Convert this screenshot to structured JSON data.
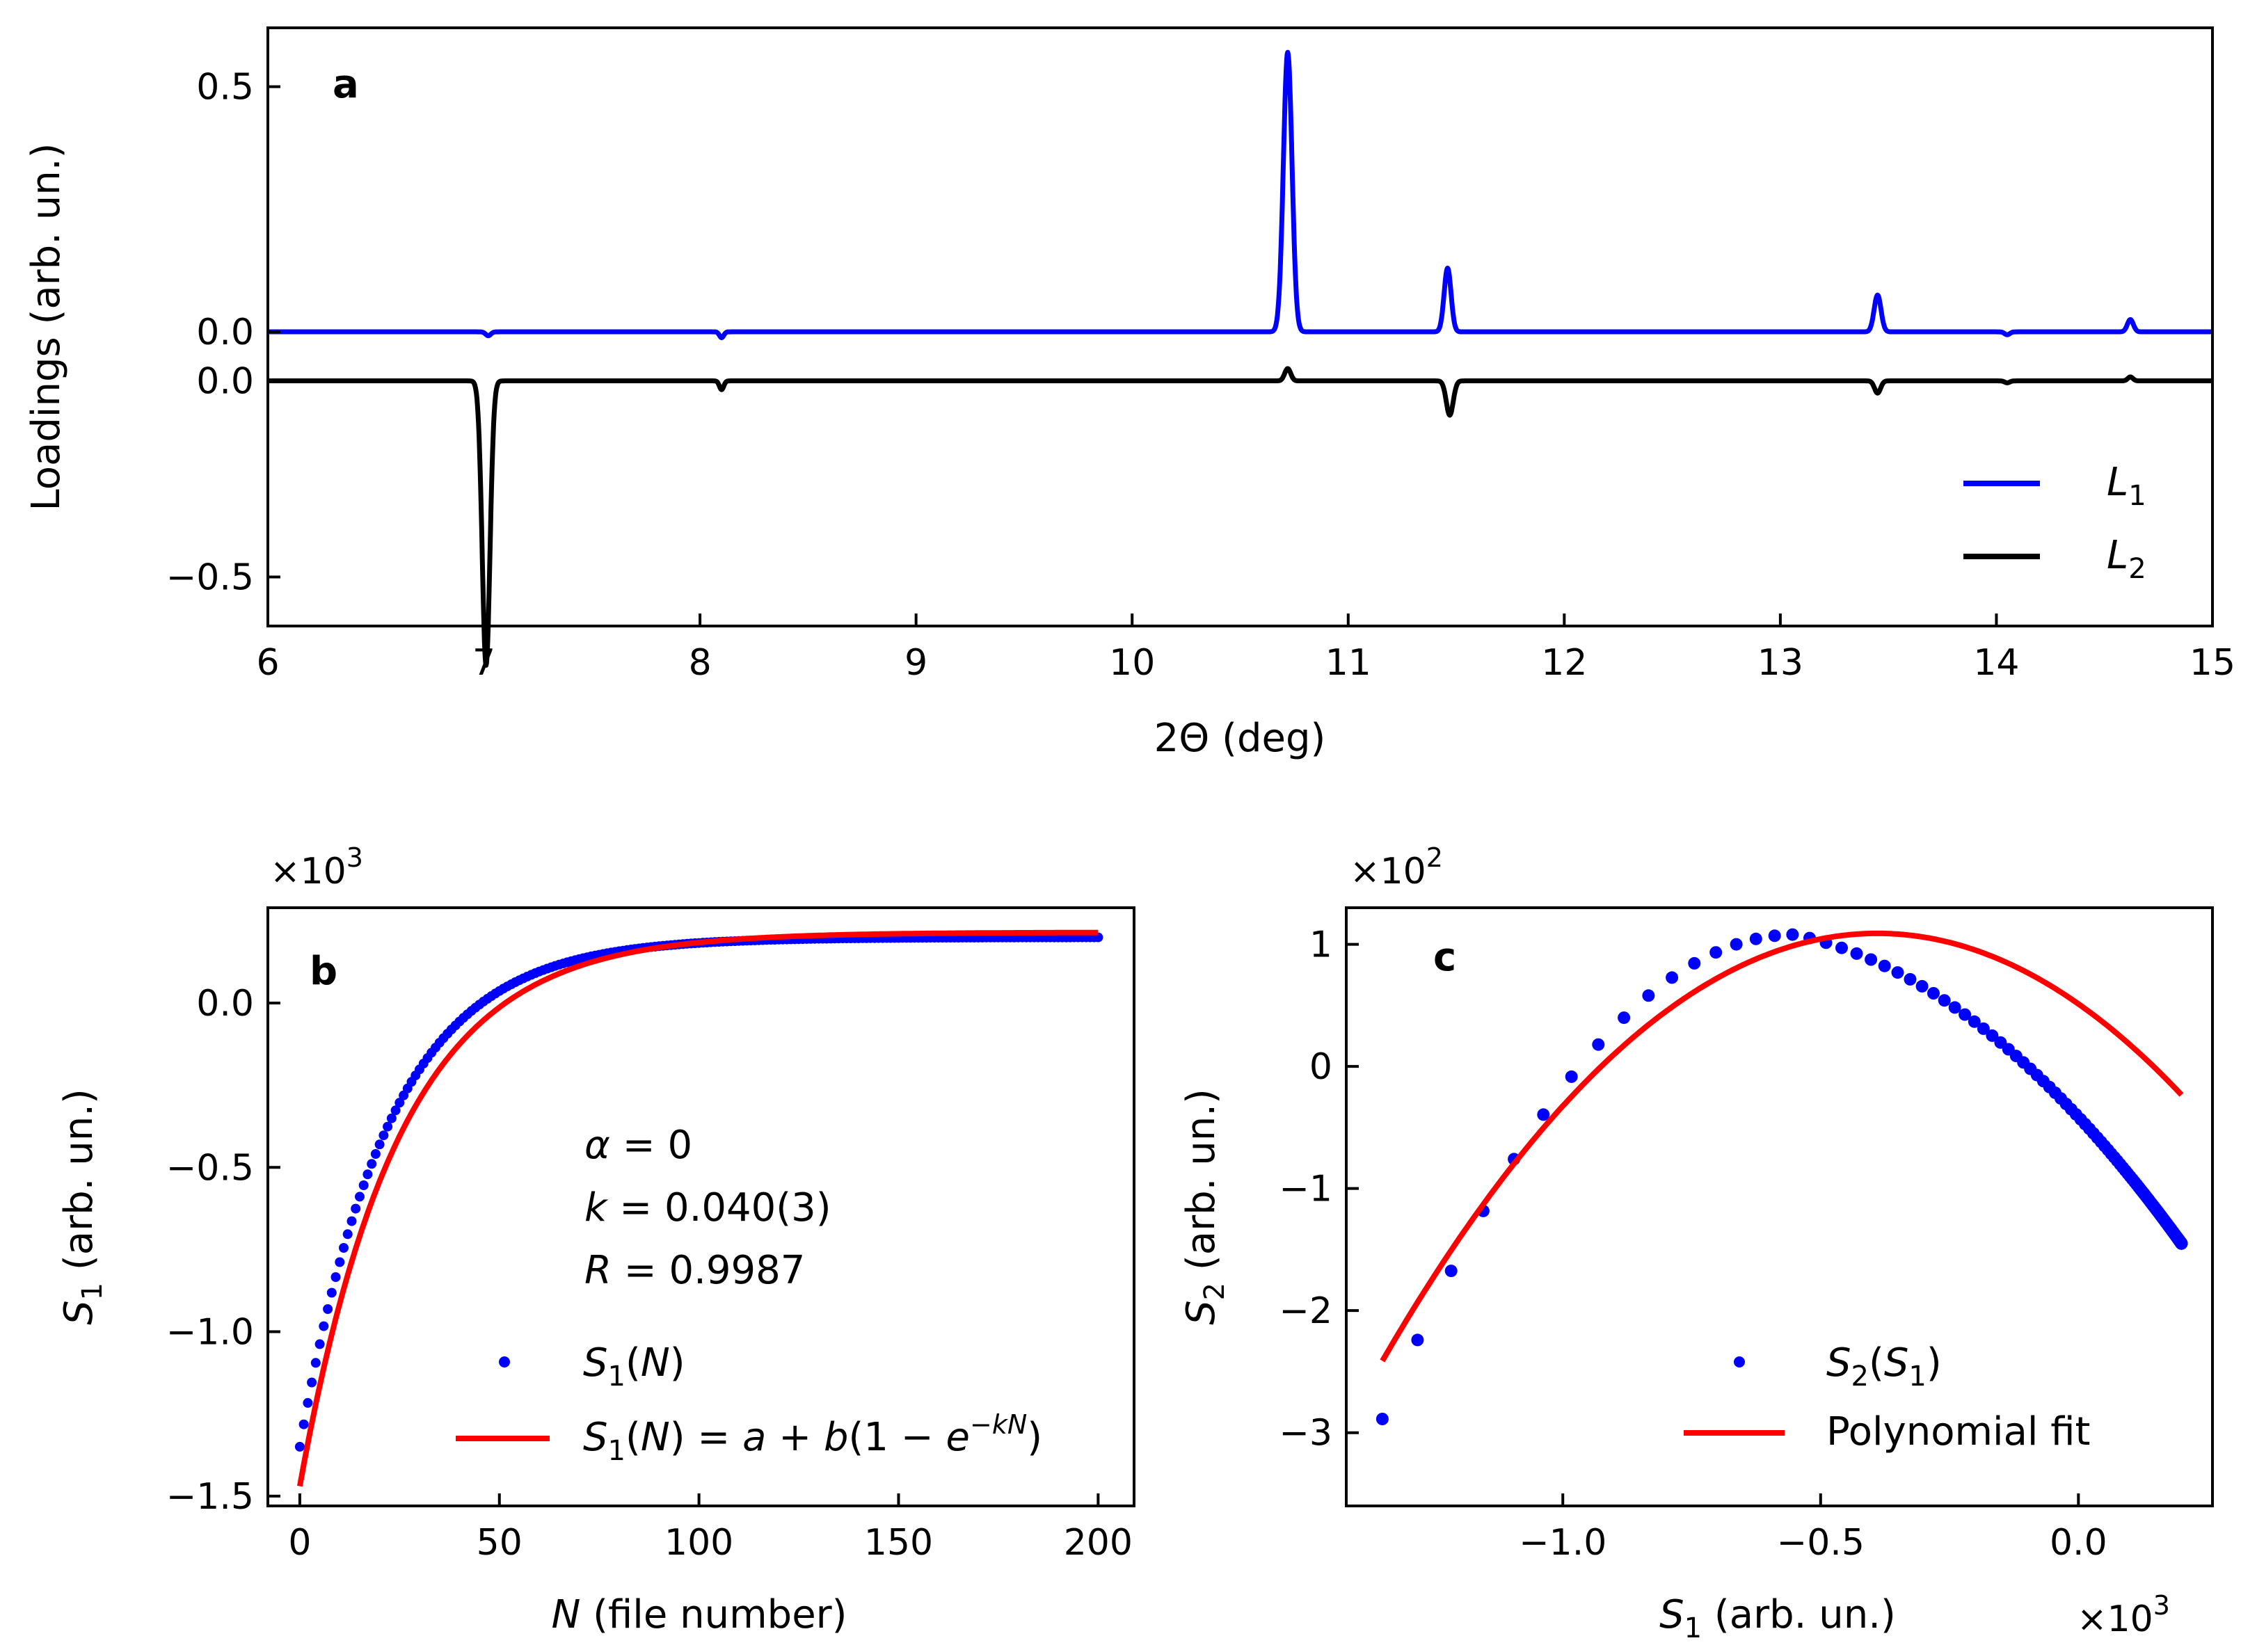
{
  "chart_data": [
    {
      "panel": "a",
      "type": "line",
      "panel_label": "a",
      "xlabel": "2Θ (deg)",
      "ylabel": "Loadings (arb. un.)",
      "xlim": [
        6,
        15
      ],
      "xticks": [
        6,
        7,
        8,
        9,
        10,
        11,
        12,
        13,
        14,
        15
      ],
      "ylim": [
        -0.6,
        0.62
      ],
      "yticks": [
        {
          "value": 0.5,
          "label": "0.5"
        },
        {
          "value": 0.0,
          "label": "0.0"
        },
        {
          "value": -0.1,
          "label": "0.0"
        },
        {
          "value": -0.5,
          "label": "−0.5"
        }
      ],
      "legend_position": "bottom-right",
      "series": [
        {
          "name": "L1",
          "legend_base": "L",
          "legend_sub": "1",
          "color": "#0000ff",
          "baseline": 0.0,
          "peaks": [
            {
              "x": 7.02,
              "amp": -0.008,
              "width": 0.012
            },
            {
              "x": 8.1,
              "amp": -0.012,
              "width": 0.01
            },
            {
              "x": 10.72,
              "amp": 0.57,
              "width": 0.02
            },
            {
              "x": 11.46,
              "amp": 0.13,
              "width": 0.016
            },
            {
              "x": 13.45,
              "amp": 0.075,
              "width": 0.016
            },
            {
              "x": 14.05,
              "amp": -0.006,
              "width": 0.012
            },
            {
              "x": 14.62,
              "amp": 0.025,
              "width": 0.014
            }
          ]
        },
        {
          "name": "L2",
          "legend_base": "L",
          "legend_sub": "2",
          "color": "#000000",
          "baseline": -0.1,
          "peaks": [
            {
              "x": 7.01,
              "amp": -0.58,
              "width": 0.018
            },
            {
              "x": 8.1,
              "amp": -0.018,
              "width": 0.01
            },
            {
              "x": 10.72,
              "amp": 0.025,
              "width": 0.014
            },
            {
              "x": 11.47,
              "amp": -0.07,
              "width": 0.016
            },
            {
              "x": 13.45,
              "amp": -0.025,
              "width": 0.014
            },
            {
              "x": 14.05,
              "amp": -0.004,
              "width": 0.012
            },
            {
              "x": 14.62,
              "amp": 0.008,
              "width": 0.012
            }
          ]
        }
      ]
    },
    {
      "panel": "b",
      "type": "scatter",
      "panel_label": "b",
      "xlabel_var": "N",
      "xlabel_rest": " (file number)",
      "ylabel_var": "S",
      "ylabel_sub": "1",
      "ylabel_rest": " (arb. un.)",
      "scale_base": "×10",
      "scale_exp": "3",
      "xlim": [
        -8,
        209
      ],
      "xticks": [
        0,
        50,
        100,
        150,
        200
      ],
      "ylim": [
        -1.53,
        0.29
      ],
      "yticks": [
        {
          "value": 0.0,
          "label": "0.0"
        },
        {
          "value": -0.5,
          "label": "−0.5"
        },
        {
          "value": -1.0,
          "label": "−1.0"
        },
        {
          "value": -1.5,
          "label": "−1.5"
        }
      ],
      "annotations": [
        {
          "var": "α",
          "rest": " = 0"
        },
        {
          "var": "k",
          "rest": " = 0.040(3)"
        },
        {
          "var": "R",
          "rest": " = 0.9987"
        }
      ],
      "legend_position": "bottom-right",
      "series": [
        {
          "name": "S1(N)",
          "legend_text": "S1(N)",
          "kind": "points",
          "color": "#0000ff",
          "model": {
            "a": -1.35,
            "b": 1.55,
            "k": 0.045
          },
          "x_range": [
            0,
            200
          ],
          "count": 201
        },
        {
          "name": "S1(N) = a + b(1 − e^(−kN))",
          "legend_text": "S1(N) = a + b(1 − e−kN)",
          "kind": "line",
          "color": "#ff0000",
          "model": {
            "a": -1.47,
            "b": 1.685,
            "k": 0.04
          },
          "x_range": [
            0,
            200
          ]
        }
      ]
    },
    {
      "panel": "c",
      "type": "scatter",
      "panel_label": "c",
      "xlabel_var": "S",
      "xlabel_sub": "1",
      "xlabel_rest": " (arb. un.)",
      "ylabel_var": "S",
      "ylabel_sub": "2",
      "ylabel_rest": " (arb. un.)",
      "x_scale_base": "×10",
      "x_scale_exp": "3",
      "y_scale_base": "×10",
      "y_scale_exp": "2",
      "xlim": [
        -1.42,
        0.26
      ],
      "xticks": [
        {
          "value": -1.0,
          "label": "−1.0"
        },
        {
          "value": -0.5,
          "label": "−0.5"
        },
        {
          "value": 0.0,
          "label": "0.0"
        }
      ],
      "ylim": [
        -3.6,
        1.3
      ],
      "yticks": [
        {
          "value": 1,
          "label": "1"
        },
        {
          "value": 0,
          "label": "0"
        },
        {
          "value": -1,
          "label": "−1"
        },
        {
          "value": -2,
          "label": "−2"
        },
        {
          "value": -3,
          "label": "−3"
        }
      ],
      "legend_position": "bottom-right",
      "series": [
        {
          "name": "S2(S1)",
          "legend_text": "S2(S1)",
          "kind": "points",
          "color": "#0000ff"
        },
        {
          "name": "Polynomial fit",
          "legend_text": "Polynomial fit",
          "kind": "line",
          "color": "#ff0000",
          "poly": {
            "vertex_x": -0.39,
            "vertex_y": 1.09,
            "curv": 3.8
          },
          "x_range": [
            -1.35,
            0.2
          ]
        }
      ]
    }
  ]
}
